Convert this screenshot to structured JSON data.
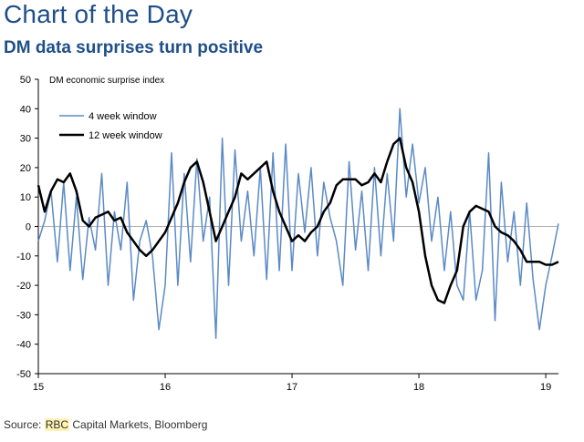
{
  "header": {
    "title": "Chart of the Day",
    "subtitle": "DM data surprises turn positive"
  },
  "source": {
    "prefix": "Source: ",
    "highlight": "RBC",
    "rest": " Capital Markets, Bloomberg"
  },
  "colors": {
    "title": "#1f4f8a",
    "series_4w": "#5b8ac6",
    "series_12w": "#000000",
    "zero_line": "#b0b0b0"
  },
  "chart_data": {
    "type": "line",
    "title": "DM economic surprise index",
    "xlabel": "",
    "ylabel": "",
    "ylim": [
      -50,
      50
    ],
    "yticks": [
      50,
      40,
      30,
      20,
      10,
      0,
      -10,
      -20,
      -30,
      -40,
      -50
    ],
    "ytick_labels": [
      "50",
      "40",
      "30",
      "20",
      "10",
      "0",
      "-10",
      "-20",
      "-30",
      "-40",
      "-50"
    ],
    "xlim": [
      2015.0,
      2019.1
    ],
    "xticks": [
      2015,
      2016,
      2017,
      2018,
      2019
    ],
    "xtick_labels": [
      "15",
      "16",
      "17",
      "18",
      "19"
    ],
    "grid": false,
    "legend": "upper-left",
    "series": [
      {
        "name": "4 week window",
        "x": [
          2015.0,
          2015.05,
          2015.1,
          2015.15,
          2015.2,
          2015.25,
          2015.3,
          2015.35,
          2015.4,
          2015.45,
          2015.5,
          2015.55,
          2015.6,
          2015.65,
          2015.7,
          2015.75,
          2015.8,
          2015.85,
          2015.9,
          2015.95,
          2016.0,
          2016.05,
          2016.1,
          2016.15,
          2016.2,
          2016.25,
          2016.3,
          2016.35,
          2016.4,
          2016.45,
          2016.5,
          2016.55,
          2016.6,
          2016.65,
          2016.7,
          2016.75,
          2016.8,
          2016.85,
          2016.9,
          2016.95,
          2017.0,
          2017.05,
          2017.1,
          2017.15,
          2017.2,
          2017.25,
          2017.3,
          2017.35,
          2017.4,
          2017.45,
          2017.5,
          2017.55,
          2017.6,
          2017.65,
          2017.7,
          2017.75,
          2017.8,
          2017.85,
          2017.9,
          2017.95,
          2018.0,
          2018.05,
          2018.1,
          2018.15,
          2018.2,
          2018.25,
          2018.3,
          2018.35,
          2018.4,
          2018.45,
          2018.5,
          2018.55,
          2018.6,
          2018.65,
          2018.7,
          2018.75,
          2018.8,
          2018.85,
          2018.9,
          2018.95,
          2019.0,
          2019.05,
          2019.1
        ],
        "y": [
          -5,
          2,
          12,
          -12,
          15,
          -15,
          10,
          -18,
          3,
          -8,
          18,
          -20,
          5,
          -8,
          15,
          -25,
          -5,
          2,
          -10,
          -35,
          -20,
          25,
          -20,
          18,
          -12,
          23,
          -5,
          10,
          -38,
          30,
          -20,
          26,
          -5,
          12,
          -10,
          20,
          -18,
          25,
          -15,
          28,
          -15,
          18,
          -2,
          20,
          -10,
          15,
          3,
          -5,
          -20,
          22,
          -8,
          12,
          -15,
          20,
          -10,
          18,
          -5,
          40,
          10,
          28,
          8,
          20,
          -5,
          10,
          -15,
          5,
          -20,
          -25,
          5,
          -25,
          -15,
          25,
          -32,
          15,
          -12,
          5,
          -20,
          8,
          -18,
          -35,
          -20,
          -10,
          1
        ]
      },
      {
        "name": "12 week window",
        "x": [
          2015.0,
          2015.05,
          2015.1,
          2015.15,
          2015.2,
          2015.25,
          2015.3,
          2015.35,
          2015.4,
          2015.45,
          2015.5,
          2015.55,
          2015.6,
          2015.65,
          2015.7,
          2015.75,
          2015.8,
          2015.85,
          2015.9,
          2015.95,
          2016.0,
          2016.05,
          2016.1,
          2016.15,
          2016.2,
          2016.25,
          2016.3,
          2016.35,
          2016.4,
          2016.45,
          2016.5,
          2016.55,
          2016.6,
          2016.65,
          2016.7,
          2016.75,
          2016.8,
          2016.85,
          2016.9,
          2016.95,
          2017.0,
          2017.05,
          2017.1,
          2017.15,
          2017.2,
          2017.25,
          2017.3,
          2017.35,
          2017.4,
          2017.45,
          2017.5,
          2017.55,
          2017.6,
          2017.65,
          2017.7,
          2017.75,
          2017.8,
          2017.85,
          2017.9,
          2017.95,
          2018.0,
          2018.05,
          2018.1,
          2018.15,
          2018.2,
          2018.25,
          2018.3,
          2018.35,
          2018.4,
          2018.45,
          2018.5,
          2018.55,
          2018.6,
          2018.65,
          2018.7,
          2018.75,
          2018.8,
          2018.85,
          2018.9,
          2018.95,
          2019.0,
          2019.05,
          2019.1
        ],
        "y": [
          14,
          5,
          12,
          16,
          15,
          18,
          12,
          2,
          0,
          3,
          4,
          5,
          2,
          3,
          -2,
          -5,
          -8,
          -10,
          -8,
          -5,
          -2,
          3,
          8,
          15,
          20,
          22,
          15,
          5,
          -5,
          0,
          5,
          10,
          18,
          16,
          18,
          20,
          22,
          12,
          5,
          0,
          -5,
          -3,
          -5,
          -2,
          0,
          5,
          8,
          14,
          16,
          16,
          16,
          14,
          15,
          18,
          15,
          22,
          28,
          30,
          20,
          15,
          5,
          -10,
          -20,
          -25,
          -26,
          -20,
          -15,
          0,
          5,
          7,
          6,
          5,
          0,
          -2,
          -3,
          -5,
          -8,
          -12,
          -12,
          -12,
          -13,
          -13,
          -12
        ]
      }
    ]
  }
}
